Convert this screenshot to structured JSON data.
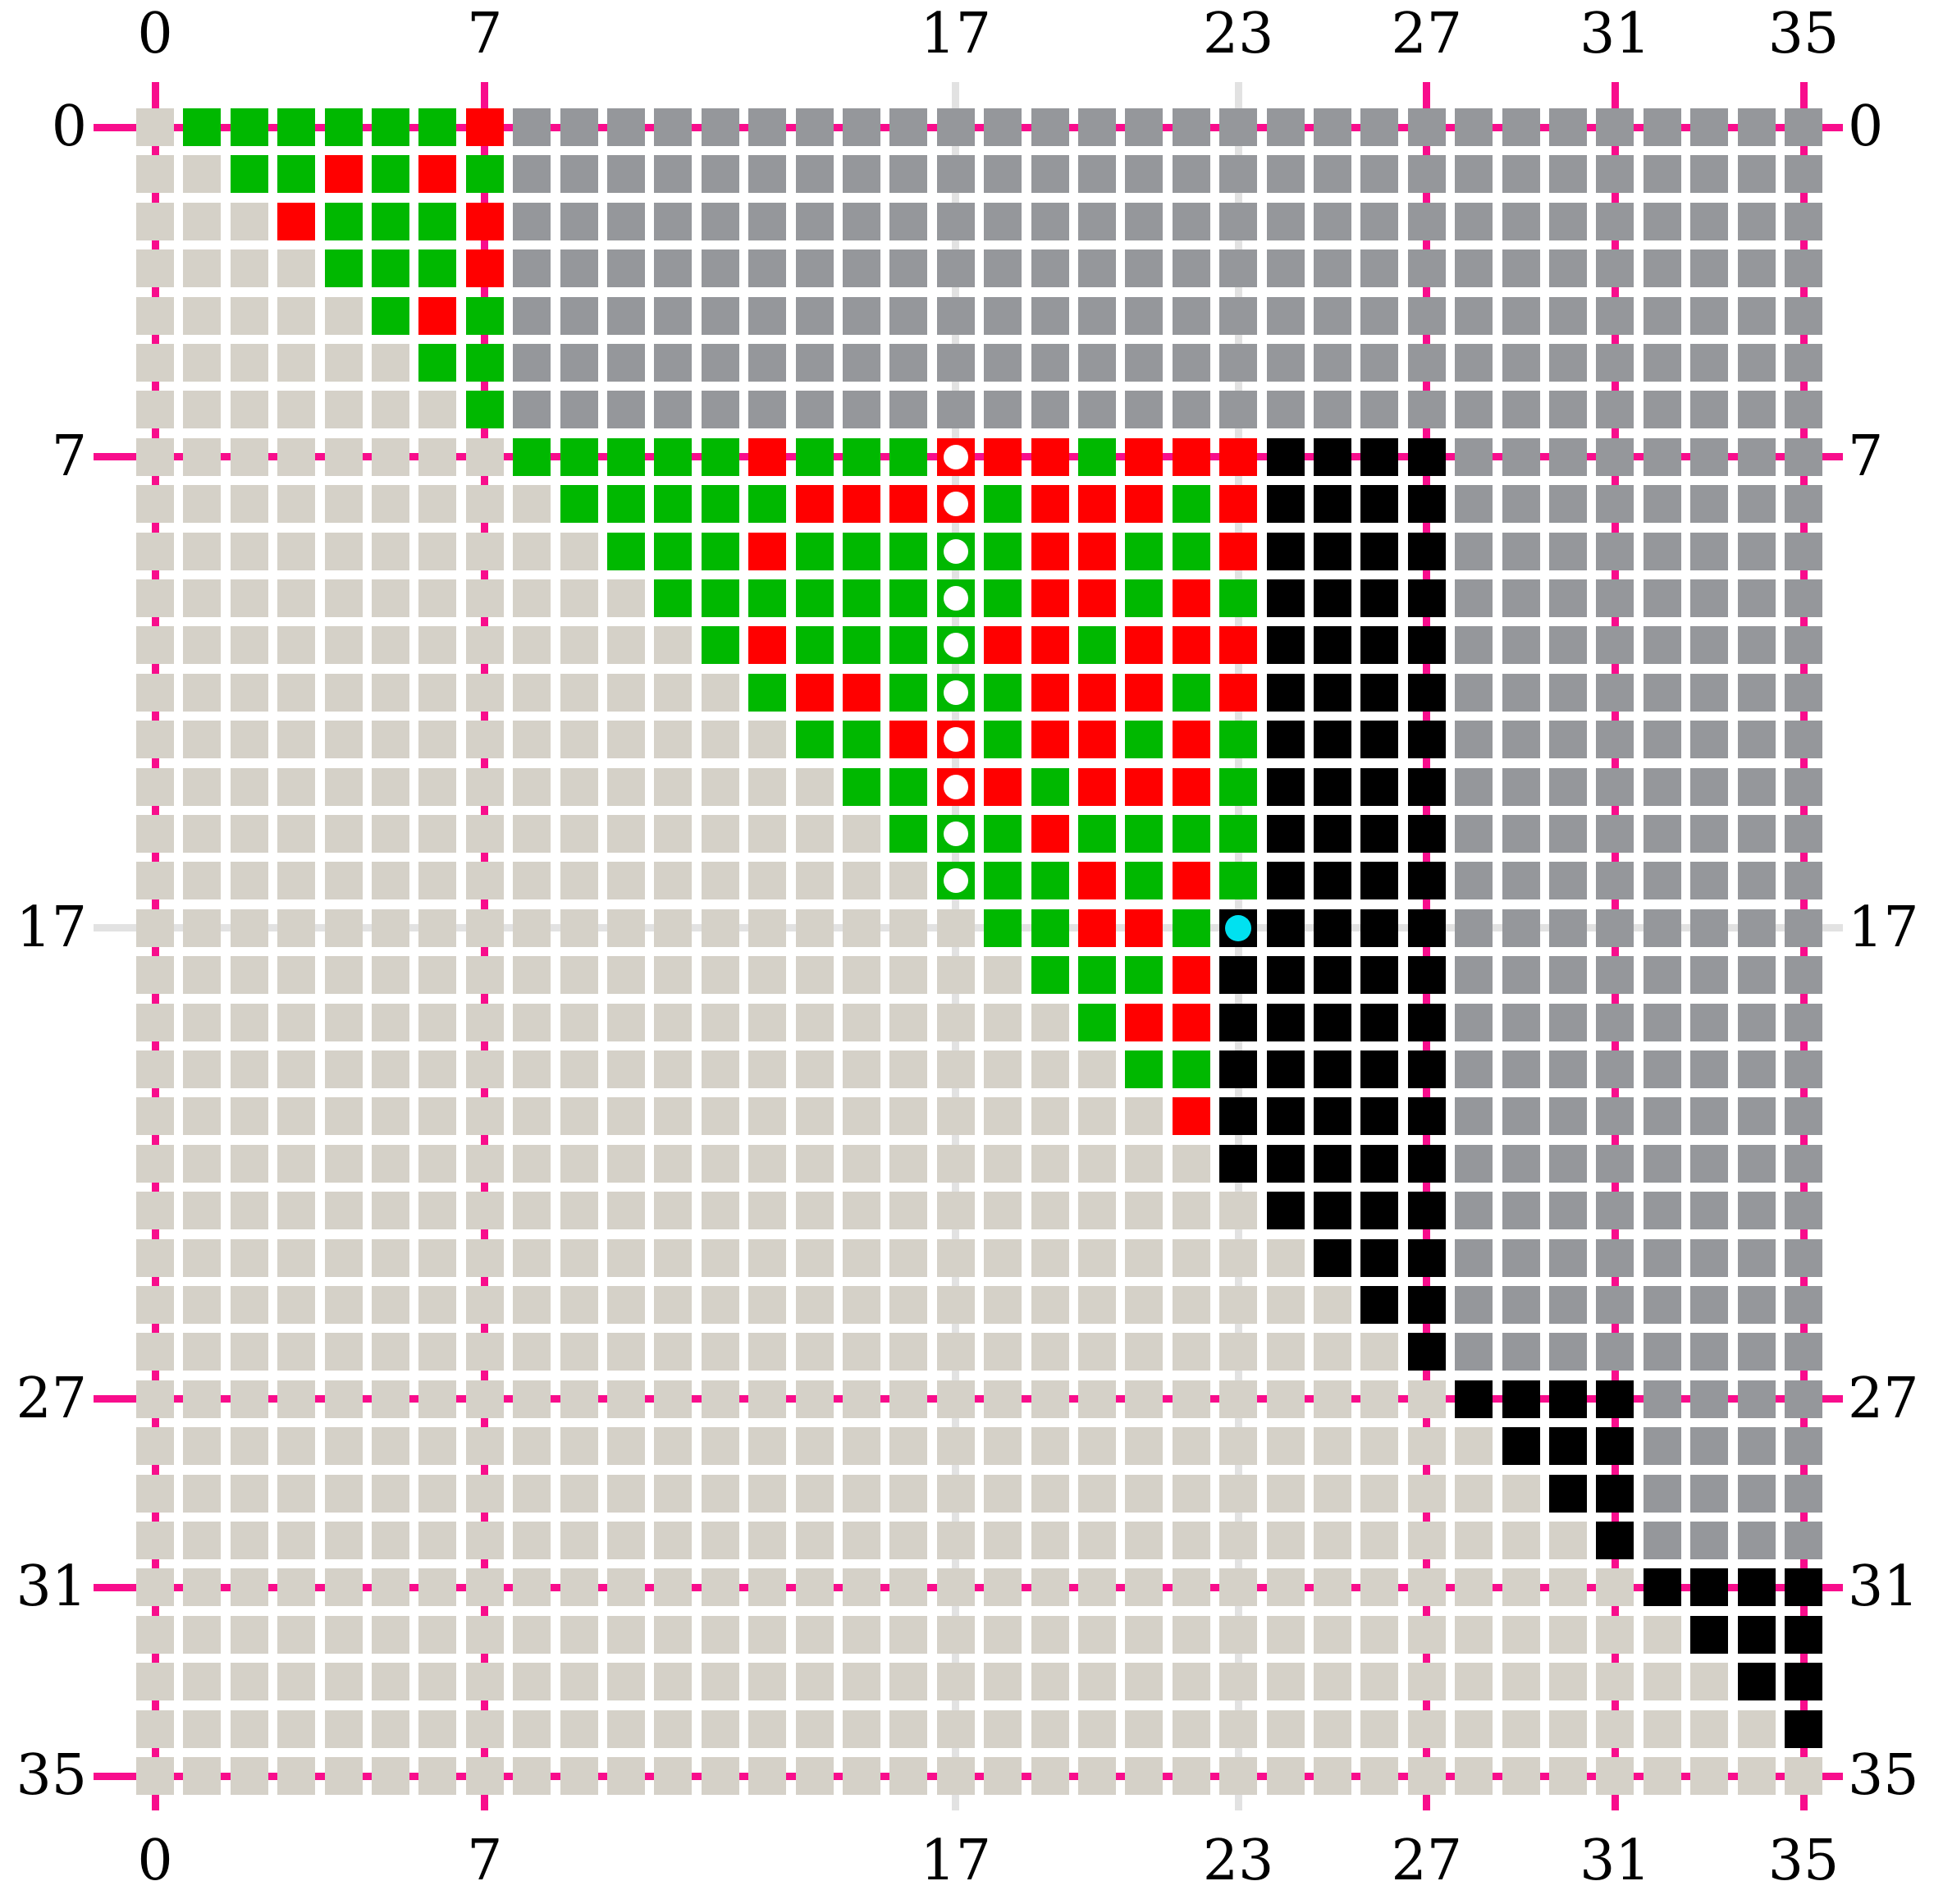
{
  "chart_data": {
    "type": "heatmap",
    "grid": {
      "rows": 36,
      "cols": 36
    },
    "axis": {
      "top": {
        "labels": [
          "0",
          "7",
          "17",
          "23",
          "27",
          "31",
          "35"
        ],
        "cols": [
          0,
          7,
          17,
          23,
          27,
          31,
          35
        ]
      },
      "bottom": {
        "labels": [
          "0",
          "7",
          "17",
          "23",
          "27",
          "31",
          "35"
        ],
        "cols": [
          0,
          7,
          17,
          23,
          27,
          31,
          35
        ]
      },
      "left": {
        "labels": [
          "0",
          "7",
          "17",
          "27",
          "31",
          "35"
        ],
        "rows": [
          0,
          7,
          17,
          27,
          31,
          35
        ]
      },
      "right": {
        "labels": [
          "0",
          "7",
          "17",
          "27",
          "31",
          "35"
        ],
        "rows": [
          0,
          7,
          17,
          27,
          31,
          35
        ]
      }
    },
    "gridlines": {
      "magenta_rows": [
        0,
        7,
        27,
        31,
        35
      ],
      "magenta_cols": [
        0,
        7,
        27,
        31,
        35
      ],
      "gray_rows": [
        17
      ],
      "gray_cols": [
        17,
        23
      ]
    },
    "cells": {
      "encoding": {
        "L": "light-gray",
        "D": "dark-gray",
        "G": "green",
        "R": "red",
        "B": "black"
      },
      "rows": [
        "LGGGGGGRDDDDDDDDDDDDDDDDDDDDDDDDDDDD",
        "LLGGRGRGDDDDDDDDDDDDDDDDDDDDDDDDDDDD",
        "LLLRGGGRDDDDDDDDDDDDDDDDDDDDDDDDDDDD",
        "LLLLGGGRDDDDDDDDDDDDDDDDDDDDDDDDDDDD",
        "LLLLLGRGDDDDDDDDDDDDDDDDDDDDDDDDDDDD",
        "LLLLLLGGDDDDDDDDDDDDDDDDDDDDDDDDDDDD",
        "LLLLLLLGDDDDDDDDDDDDDDDDDDDDDDDDDDDD",
        "LLLLLLLLGGGGGRGGGRRRGRRRBBBBDDDDDDDD",
        "LLLLLLLLLGGGGGRRRRGRRRGRBBBBDDDDDDDD",
        "LLLLLLLLLLGGGRGGGGGRRGGRBBBBDDDDDDDD",
        "LLLLLLLLLLLGGGGGGGGRRGRGBBBBDDDDDDDD",
        "LLLLLLLLLLLLGRGGGGRRGRRRBBBBDDDDDDDD",
        "LLLLLLLLLLLLLGRRGGGRRRGRBBBBDDDDDDDD",
        "LLLLLLLLLLLLLLGGRRGRRGRGBBBBDDDDDDDD",
        "LLLLLLLLLLLLLLLGGRRGRRRGBBBBDDDDDDDD",
        "LLLLLLLLLLLLLLLLGGGRGGGGBBBBDDDDDDDD",
        "LLLLLLLLLLLLLLLLLGGGRGRGBBBBDDDDDDDD",
        "LLLLLLLLLLLLLLLLLLGGRRGBBBBBDDDDDDDD",
        "LLLLLLLLLLLLLLLLLLLGGGRBBBBBDDDDDDDD",
        "LLLLLLLLLLLLLLLLLLLLGRRBBBBBDDDDDDDD",
        "LLLLLLLLLLLLLLLLLLLLLGGBBBBBDDDDDDDD",
        "LLLLLLLLLLLLLLLLLLLLLLRBBBBBDDDDDDDD",
        "LLLLLLLLLLLLLLLLLLLLLLLBBBBBDDDDDDDD",
        "LLLLLLLLLLLLLLLLLLLLLLLLBBBBDDDDDDDD",
        "LLLLLLLLLLLLLLLLLLLLLLLLLBBBDDDDDDDD",
        "LLLLLLLLLLLLLLLLLLLLLLLLLLBBDDDDDDDD",
        "LLLLLLLLLLLLLLLLLLLLLLLLLLLBDDDDDDDD",
        "LLLLLLLLLLLLLLLLLLLLLLLLLLLLBBBBDDDD",
        "LLLLLLLLLLLLLLLLLLLLLLLLLLLLLBBBDDDD",
        "LLLLLLLLLLLLLLLLLLLLLLLLLLLLLLBBDDDD",
        "LLLLLLLLLLLLLLLLLLLLLLLLLLLLLLLBDDDD",
        "LLLLLLLLLLLLLLLLLLLLLLLLLLLLLLLLBBBB",
        "LLLLLLLLLLLLLLLLLLLLLLLLLLLLLLLLLBBB",
        "LLLLLLLLLLLLLLLLLLLLLLLLLLLLLLLLLLBB",
        "LLLLLLLLLLLLLLLLLLLLLLLLLLLLLLLLLLLB",
        "LLLLLLLLLLLLLLLLLLLLLLLLLLLLLLLLLLLL"
      ]
    },
    "markers": {
      "white_circles": {
        "col": 17,
        "rows": [
          7,
          8,
          9,
          10,
          11,
          12,
          13,
          14,
          15,
          16
        ]
      },
      "cyan_circle": {
        "row": 17,
        "col": 23
      }
    }
  },
  "colors": {
    "background": "#ffffff",
    "light_cell": "#d5d1c8",
    "dark_cell": "#95979b",
    "green": "#00b800",
    "red": "#ff0000",
    "black": "#000000",
    "magenta_line": "#f80d8c",
    "gray_line": "#e2e2e2",
    "cyan_marker": "#00e1f0",
    "white_marker": "#ffffff",
    "label": "#000000"
  }
}
